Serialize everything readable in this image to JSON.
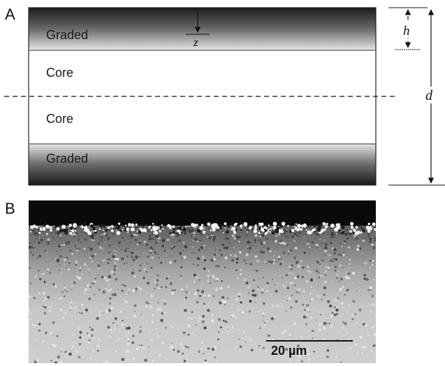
{
  "panel_a": {
    "letter": "A",
    "layers": {
      "top": "Graded",
      "core_upper": "Core",
      "core_lower": "Core",
      "bottom": "Graded"
    },
    "symbols": {
      "z": "z",
      "h": "h",
      "d": "d"
    }
  },
  "panel_b": {
    "letter": "B",
    "scale_bar": "20 µm"
  },
  "colors": {
    "graded_dark": "#1a1a1a",
    "graded_light": "#e0e0e0",
    "core": "#ffffff",
    "micrograph_top": "#0a0a0a",
    "micrograph_bulk": "#c8c8c8"
  }
}
